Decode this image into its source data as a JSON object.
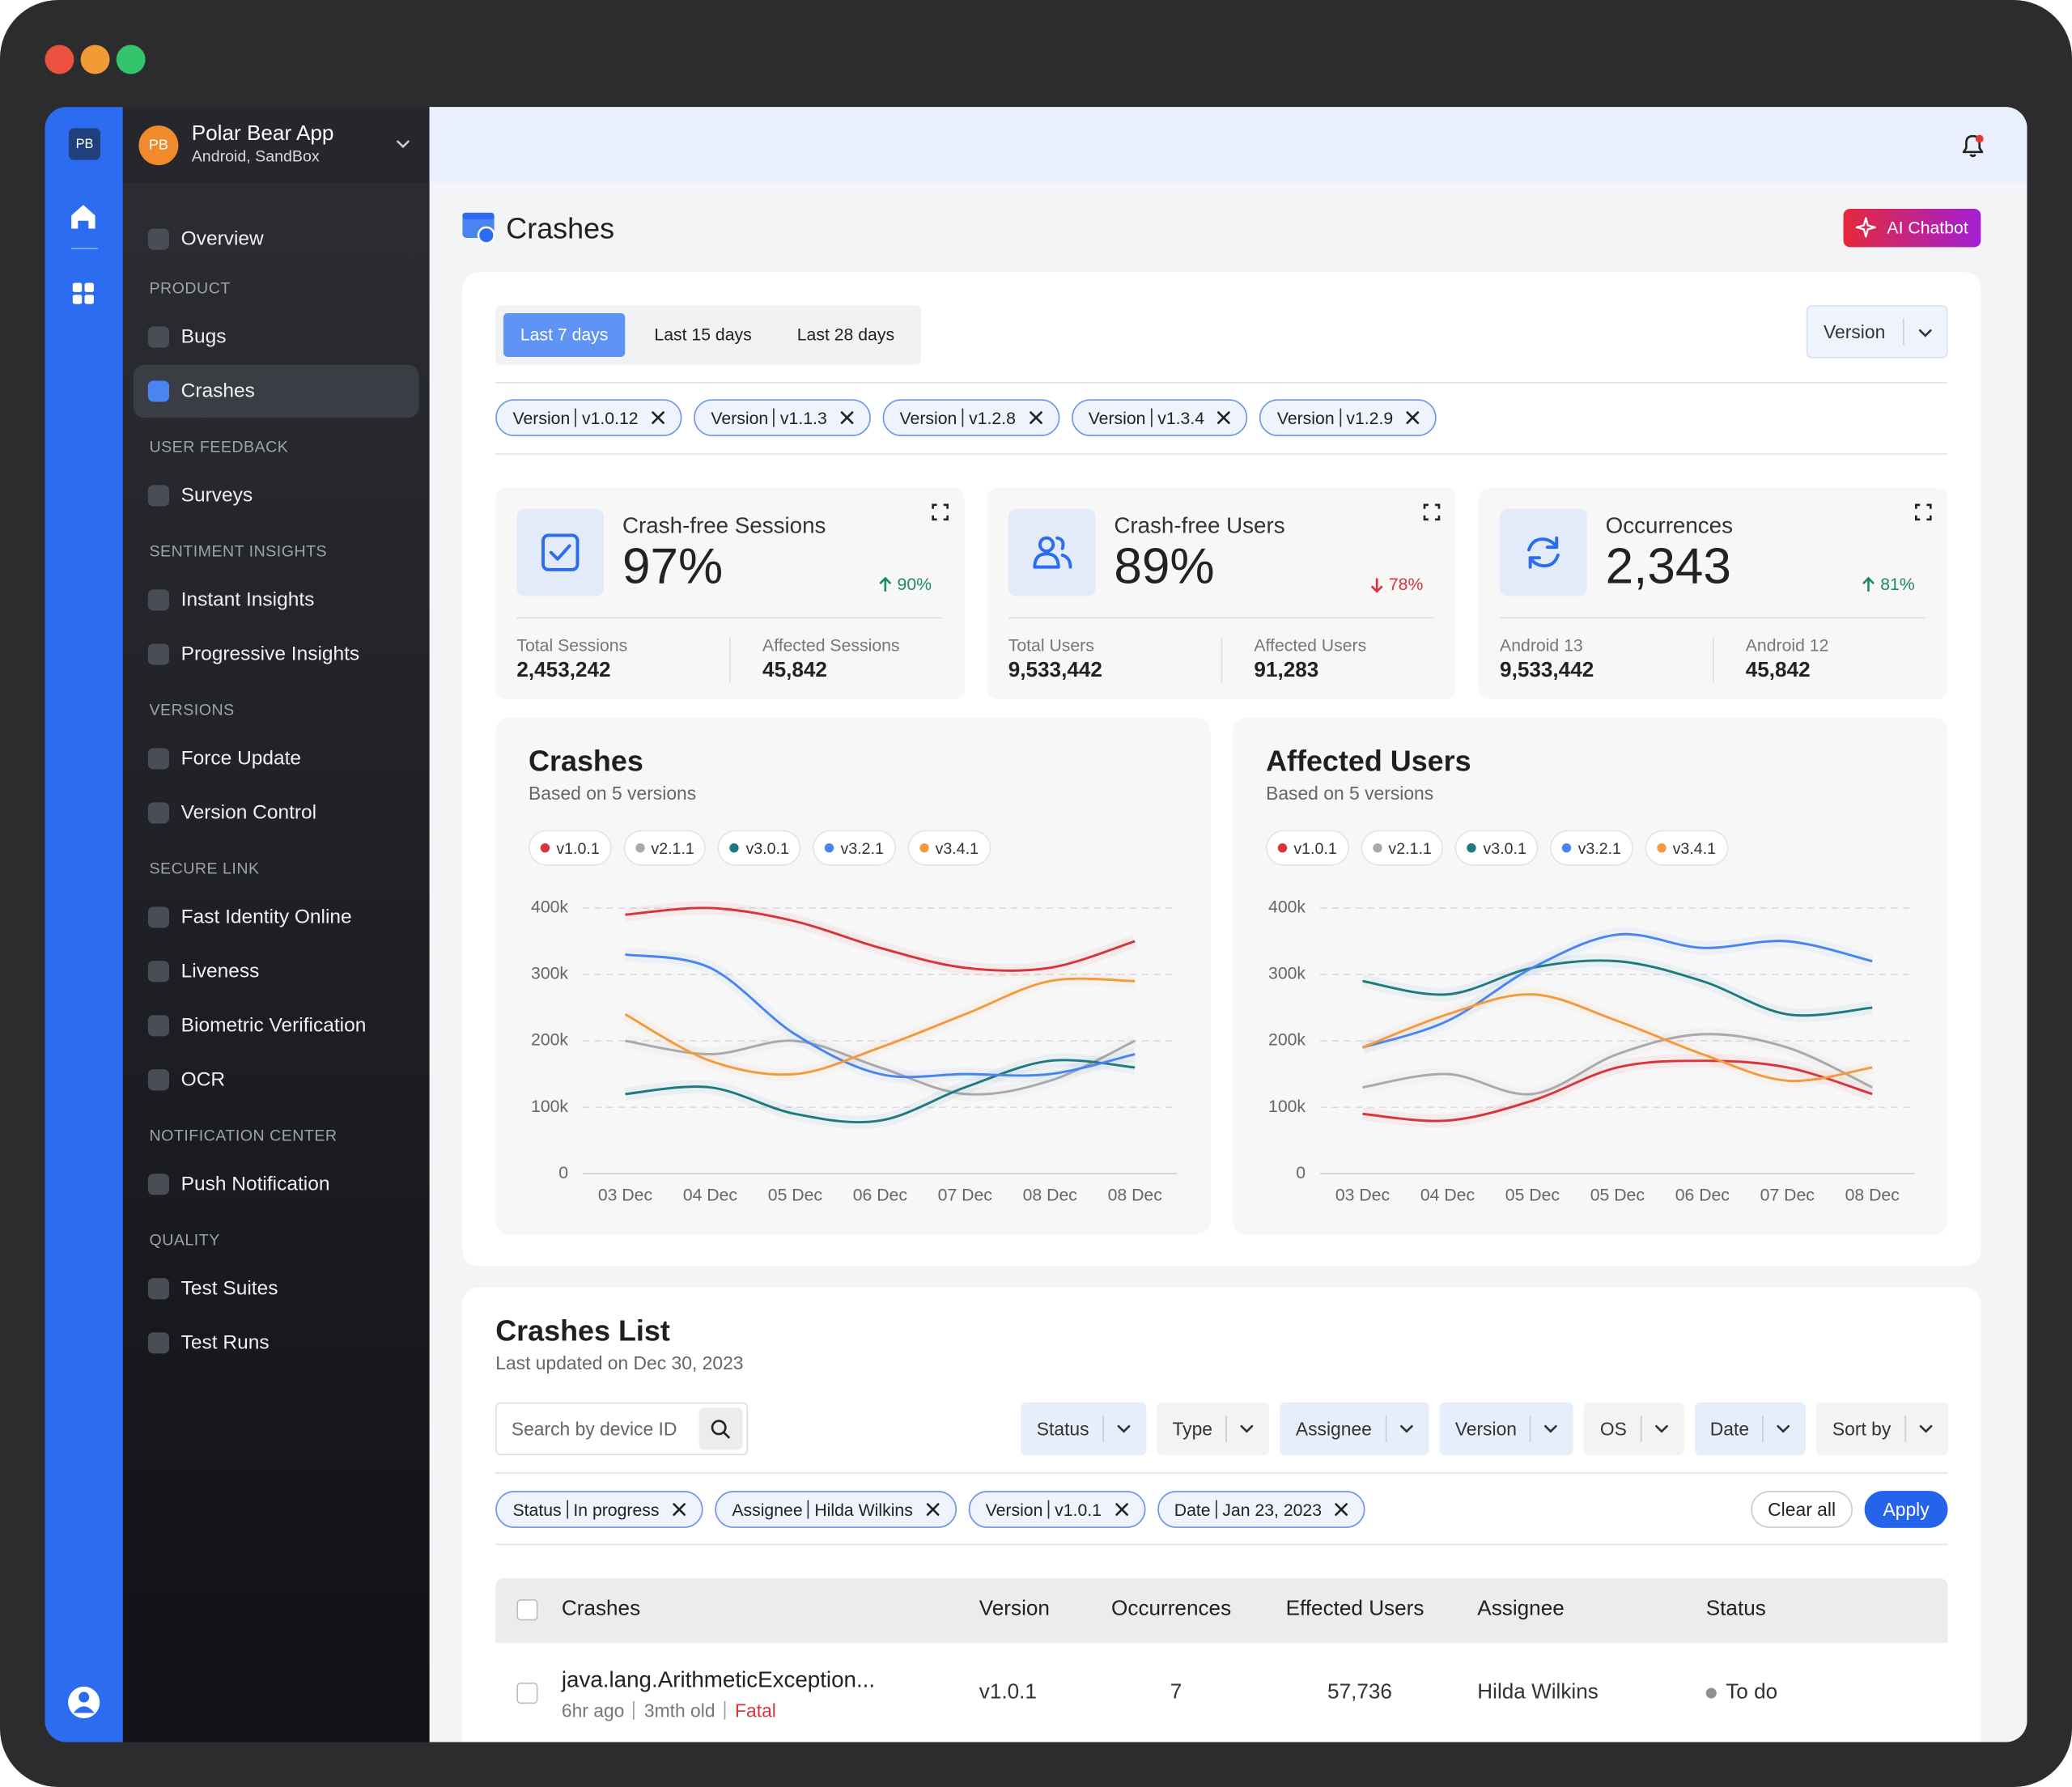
{
  "sidebar": {
    "rail_avatar": "PB",
    "app": {
      "avatar": "PB",
      "name": "Polar Bear App",
      "subtitle": "Android, SandBox"
    },
    "nav": [
      {
        "items": [
          {
            "label": "Overview"
          }
        ]
      },
      {
        "heading": "PRODUCT",
        "items": [
          {
            "label": "Bugs"
          },
          {
            "label": "Crashes",
            "active": true
          }
        ]
      },
      {
        "heading": "USER FEEDBACK",
        "items": [
          {
            "label": "Surveys"
          }
        ]
      },
      {
        "heading": "SENTIMENT INSIGHTS",
        "items": [
          {
            "label": "Instant Insights"
          },
          {
            "label": "Progressive Insights"
          }
        ]
      },
      {
        "heading": "VERSIONS",
        "items": [
          {
            "label": "Force Update"
          },
          {
            "label": "Version Control"
          }
        ]
      },
      {
        "heading": "SECURE LINK",
        "items": [
          {
            "label": "Fast Identity Online"
          },
          {
            "label": "Liveness"
          },
          {
            "label": "Biometric Verification"
          },
          {
            "label": "OCR"
          }
        ]
      },
      {
        "heading": "NOTIFICATION CENTER",
        "items": [
          {
            "label": "Push Notification"
          }
        ]
      },
      {
        "heading": "QUALITY",
        "items": [
          {
            "label": "Test Suites"
          },
          {
            "label": "Test Runs"
          }
        ]
      }
    ]
  },
  "header": {
    "title": "Crashes",
    "button": "AI Chatbot"
  },
  "filters": {
    "ranges": [
      {
        "label": "Last 7 days",
        "active": true
      },
      {
        "label": "Last 15 days"
      },
      {
        "label": "Last 28 days"
      }
    ],
    "dropdown": "Version",
    "chips": [
      {
        "key": "Version",
        "value": "v1.0.12"
      },
      {
        "key": "Version",
        "value": "v1.1.3"
      },
      {
        "key": "Version",
        "value": "v1.2.8"
      },
      {
        "key": "Version",
        "value": "v1.3.4"
      },
      {
        "key": "Version",
        "value": "v1.2.9"
      }
    ]
  },
  "stats": [
    {
      "title": "Crash-free Sessions",
      "value": "97%",
      "change": "90%",
      "trend": "up",
      "metrics": [
        {
          "label": "Total Sessions",
          "value": "2,453,242"
        },
        {
          "label": "Affected Sessions",
          "value": "45,842"
        }
      ]
    },
    {
      "title": "Crash-free Users",
      "value": "89%",
      "change": "78%",
      "trend": "down",
      "metrics": [
        {
          "label": "Total Users",
          "value": "9,533,442"
        },
        {
          "label": "Affected Users",
          "value": "91,283"
        }
      ]
    },
    {
      "title": "Occurrences",
      "value": "2,343",
      "change": "81%",
      "trend": "up",
      "metrics": [
        {
          "label": "Android 13",
          "value": "9,533,442"
        },
        {
          "label": "Android 12",
          "value": "45,842"
        }
      ]
    }
  ],
  "chart_data": [
    {
      "type": "line",
      "title": "Crashes",
      "subtitle": "Based on 5 versions",
      "categories": [
        "03 Dec",
        "04 Dec",
        "05 Dec",
        "06 Dec",
        "07 Dec",
        "08 Dec",
        "08 Dec"
      ],
      "ylim": [
        0,
        400000
      ],
      "yticks": [
        0,
        {
          "value": 100000,
          "label": "100k"
        },
        {
          "value": 200000,
          "label": "200k"
        },
        {
          "value": 300000,
          "label": "300k"
        },
        {
          "value": 400000,
          "label": "400k"
        }
      ],
      "grid": true,
      "series": [
        {
          "name": "v1.0.1",
          "color": "#d8343b",
          "values": [
            390000,
            400000,
            380000,
            340000,
            310000,
            310000,
            350000
          ]
        },
        {
          "name": "v2.1.1",
          "color": "#a9a9ab",
          "values": [
            200000,
            180000,
            200000,
            160000,
            120000,
            140000,
            200000
          ]
        },
        {
          "name": "v3.0.1",
          "color": "#1f7a80",
          "values": [
            120000,
            130000,
            90000,
            80000,
            130000,
            170000,
            160000
          ]
        },
        {
          "name": "v3.2.1",
          "color": "#4a84f0",
          "values": [
            330000,
            310000,
            210000,
            150000,
            150000,
            150000,
            180000
          ]
        },
        {
          "name": "v3.4.1",
          "color": "#f39a3c",
          "values": [
            240000,
            170000,
            150000,
            190000,
            240000,
            290000,
            290000
          ]
        }
      ]
    },
    {
      "type": "line",
      "title": "Affected Users",
      "subtitle": "Based on 5 versions",
      "categories": [
        "03 Dec",
        "04 Dec",
        "05 Dec",
        "05 Dec",
        "06 Dec",
        "07 Dec",
        "08 Dec"
      ],
      "ylim": [
        0,
        400000
      ],
      "yticks": [
        0,
        {
          "value": 100000,
          "label": "100k"
        },
        {
          "value": 200000,
          "label": "200k"
        },
        {
          "value": 300000,
          "label": "300k"
        },
        {
          "value": 400000,
          "label": "400k"
        }
      ],
      "grid": true,
      "series": [
        {
          "name": "v1.0.1",
          "color": "#d8343b",
          "values": [
            90000,
            80000,
            110000,
            160000,
            170000,
            160000,
            120000
          ]
        },
        {
          "name": "v2.1.1",
          "color": "#a9a9ab",
          "values": [
            130000,
            150000,
            120000,
            180000,
            210000,
            190000,
            130000
          ]
        },
        {
          "name": "v3.0.1",
          "color": "#1f7a80",
          "values": [
            290000,
            270000,
            310000,
            320000,
            290000,
            240000,
            250000
          ]
        },
        {
          "name": "v3.2.1",
          "color": "#4a84f0",
          "values": [
            190000,
            230000,
            310000,
            360000,
            340000,
            350000,
            320000
          ]
        },
        {
          "name": "v3.4.1",
          "color": "#f39a3c",
          "values": [
            190000,
            240000,
            270000,
            230000,
            180000,
            140000,
            160000
          ]
        }
      ]
    }
  ],
  "crashes_list": {
    "title": "Crashes List",
    "subtitle": "Last updated on Dec 30, 2023",
    "search_placeholder": "Search by device ID",
    "dropdowns": [
      {
        "label": "Status",
        "highlighted": true
      },
      {
        "label": "Type"
      },
      {
        "label": "Assignee",
        "highlighted": true
      },
      {
        "label": "Version",
        "highlighted": true
      },
      {
        "label": "OS"
      },
      {
        "label": "Date",
        "highlighted": true
      },
      {
        "label": "Sort by"
      }
    ],
    "applied": [
      {
        "key": "Status",
        "value": "In progress"
      },
      {
        "key": "Assignee",
        "value": "Hilda Wilkins"
      },
      {
        "key": "Version",
        "value": "v1.0.1"
      },
      {
        "key": "Date",
        "value": "Jan 23, 2023"
      }
    ],
    "clear_button": "Clear all",
    "apply_button": "Apply",
    "columns": [
      "Crashes",
      "Version",
      "Occurrences",
      "Effected Users",
      "Assignee",
      "Status"
    ],
    "rows": [
      {
        "name": "java.lang.ArithmeticException...",
        "meta": [
          "6hr ago",
          "3mth old"
        ],
        "severity": "Fatal",
        "version": "v1.0.1",
        "occurrences": "7",
        "users": "57,736",
        "assignee": "Hilda Wilkins",
        "status": "To do"
      }
    ]
  }
}
